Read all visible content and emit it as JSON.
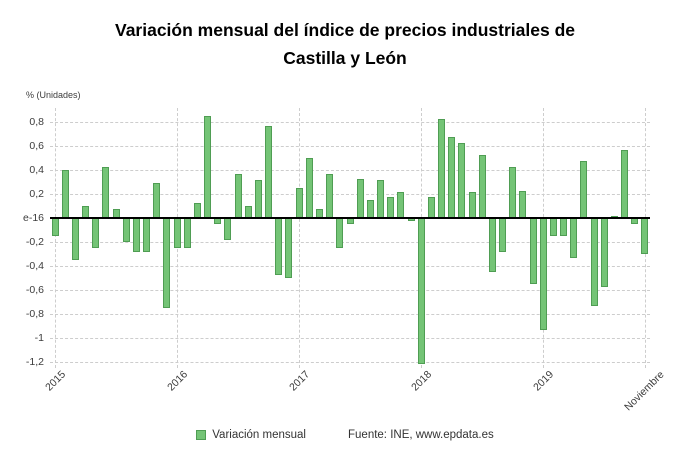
{
  "page": {
    "title_line1": "Variación mensual del índice de precios industriales de",
    "title_line2": "Castilla y León",
    "unit_label": "% (Unidades)"
  },
  "legend": {
    "series_label": "Variación mensual",
    "source": "Fuente: INE, www.epdata.es"
  },
  "colors": {
    "bar_fill": "#74c476",
    "bar_border": "#4f9d53",
    "grid": "#cdcdcd",
    "zero_line": "#000000",
    "text": "#3c3c3c"
  },
  "chart_data": {
    "type": "bar",
    "title": "Variación mensual del índice de precios industriales de Castilla y León",
    "ylabel": "% (Unidades)",
    "ylim": [
      -1.25,
      0.92
    ],
    "grid": true,
    "legend_position": "bottom",
    "yticks": [
      {
        "value": 0.8,
        "label": "0,8"
      },
      {
        "value": 0.6,
        "label": "0,6"
      },
      {
        "value": 0.4,
        "label": "0,4"
      },
      {
        "value": 0.2,
        "label": "0,2"
      },
      {
        "value": 0,
        "label": "e-16"
      },
      {
        "value": -0.2,
        "label": "-0,2"
      },
      {
        "value": -0.4,
        "label": "-0,4"
      },
      {
        "value": -0.6,
        "label": "-0,6"
      },
      {
        "value": -0.8,
        "label": "-0,8"
      },
      {
        "value": -1.0,
        "label": "-1"
      },
      {
        "value": -1.2,
        "label": "-1,2"
      }
    ],
    "xticks": [
      {
        "index": 0,
        "label": "2015"
      },
      {
        "index": 12,
        "label": "2016"
      },
      {
        "index": 24,
        "label": "2017"
      },
      {
        "index": 36,
        "label": "2018"
      },
      {
        "index": 48,
        "label": "2019"
      },
      {
        "index": 58,
        "label": "Noviembre"
      }
    ],
    "series": [
      {
        "name": "Variación mensual",
        "months": [
          "2015-01",
          "2015-02",
          "2015-03",
          "2015-04",
          "2015-05",
          "2015-06",
          "2015-07",
          "2015-08",
          "2015-09",
          "2015-10",
          "2015-11",
          "2015-12",
          "2016-01",
          "2016-02",
          "2016-03",
          "2016-04",
          "2016-05",
          "2016-06",
          "2016-07",
          "2016-08",
          "2016-09",
          "2016-10",
          "2016-11",
          "2016-12",
          "2017-01",
          "2017-02",
          "2017-03",
          "2017-04",
          "2017-05",
          "2017-06",
          "2017-07",
          "2017-08",
          "2017-09",
          "2017-10",
          "2017-11",
          "2017-12",
          "2018-01",
          "2018-02",
          "2018-03",
          "2018-04",
          "2018-05",
          "2018-06",
          "2018-07",
          "2018-08",
          "2018-09",
          "2018-10",
          "2018-11",
          "2018-12",
          "2019-01",
          "2019-02",
          "2019-03",
          "2019-04",
          "2019-05",
          "2019-06",
          "2019-07",
          "2019-08",
          "2019-09",
          "2019-10",
          "2019-11"
        ],
        "values": [
          -0.15,
          0.4,
          -0.35,
          0.1,
          -0.25,
          0.43,
          0.08,
          -0.2,
          -0.28,
          -0.28,
          0.29,
          -0.75,
          -0.25,
          -0.25,
          0.13,
          0.85,
          -0.05,
          -0.18,
          0.37,
          0.1,
          0.32,
          0.77,
          -0.47,
          -0.5,
          0.25,
          0.5,
          0.08,
          0.37,
          -0.25,
          -0.05,
          0.33,
          0.15,
          0.32,
          0.18,
          0.22,
          -0.02,
          -1.22,
          0.18,
          0.83,
          0.68,
          0.63,
          0.22,
          0.53,
          -0.45,
          -0.28,
          0.43,
          0.23,
          -0.55,
          -0.93,
          -0.15,
          -0.15,
          -0.33,
          0.48,
          -0.73,
          -0.57,
          0.02,
          0.57,
          -0.05,
          -0.3
        ]
      }
    ]
  }
}
